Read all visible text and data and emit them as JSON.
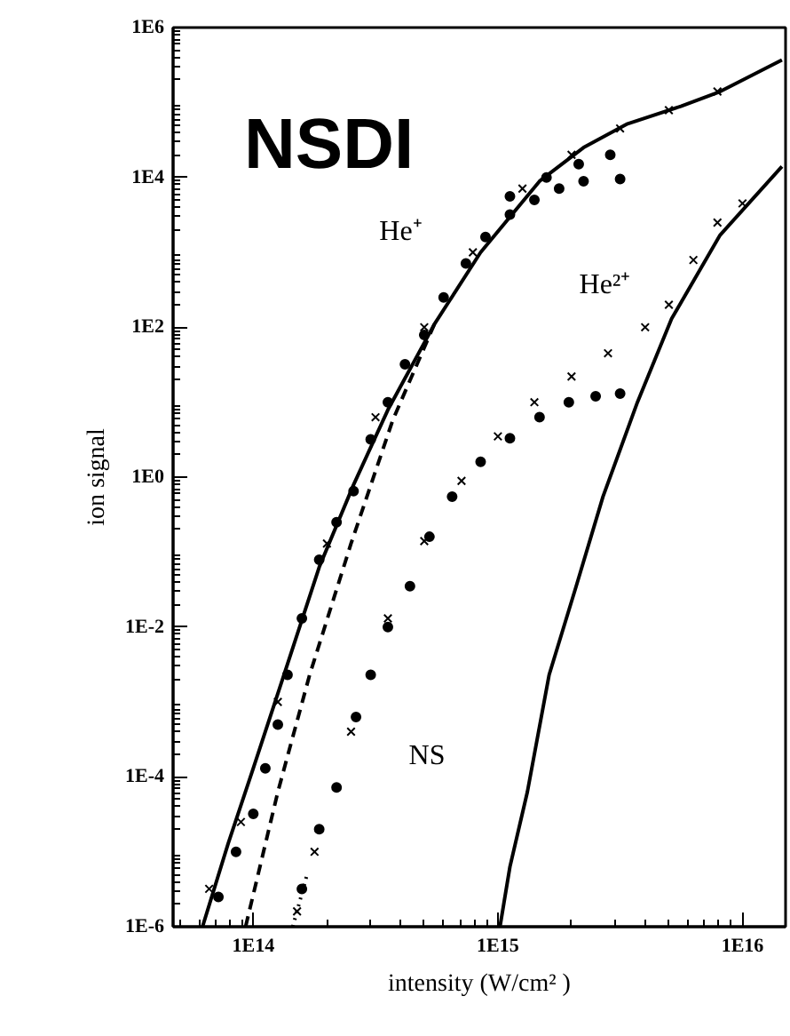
{
  "chart_data": {
    "type": "scatter",
    "title": "NSDI",
    "xlabel": "intensity (W/cm² )",
    "ylabel": "ion signal",
    "log": "xy",
    "grid": false,
    "xlim": [
      47000000000000.0,
      1.5e+16
    ],
    "ylim": [
      1e-06,
      1000000.0
    ],
    "xticks": [
      {
        "value": 100000000000000.0,
        "label": "1E14"
      },
      {
        "value": 1000000000000000.0,
        "label": "1E15"
      },
      {
        "value": 1e+16,
        "label": "1E16"
      }
    ],
    "yticks": [
      {
        "value": 1e-06,
        "label": "1E-6"
      },
      {
        "value": 0.0001,
        "label": "1E-4"
      },
      {
        "value": 0.01,
        "label": "1E-2"
      },
      {
        "value": 1,
        "label": "1E0"
      },
      {
        "value": 100,
        "label": "1E2"
      },
      {
        "value": 10000,
        "label": "1E4"
      },
      {
        "value": 1000000,
        "label": "1E6"
      }
    ],
    "annotations": [
      "He⁺",
      "He²⁺",
      "NS"
    ],
    "series": [
      {
        "marker": "circle",
        "color": "#000000",
        "x": [
          72000000000000.0,
          85000000000000.0,
          100000000000000.0,
          112000000000000.0,
          126000000000000.0,
          138000000000000.0,
          158000000000000.0,
          186000000000000.0,
          219000000000000.0,
          257000000000000.0,
          302000000000000.0,
          355000000000000.0,
          417000000000000.0,
          500000000000000.0,
          600000000000000.0,
          740000000000000.0,
          890000000000000.0,
          1120000000000000.0,
          1410000000000000.0,
          1780000000000000.0,
          2240000000000000.0,
          3160000000000000.0
        ],
        "values": [
          2.5e-06,
          1e-05,
          3.2e-05,
          0.00013,
          0.0005,
          0.0023,
          0.013,
          0.079,
          0.25,
          0.65,
          3.2,
          10,
          32,
          79,
          250,
          710,
          1600,
          3200,
          5000,
          7100,
          8900,
          9500
        ]
      },
      {
        "marker": "circle",
        "color": "#000000",
        "x": [
          1120000000000000.0,
          1580000000000000.0,
          2140000000000000.0,
          2880000000000000.0
        ],
        "values": [
          5600,
          10000,
          15000,
          20000
        ]
      },
      {
        "marker": "cross",
        "color": "#000000",
        "x": [
          66000000000000.0,
          89000000000000.0,
          126000000000000.0,
          200000000000000.0,
          316000000000000.0,
          500000000000000.0,
          790000000000000.0,
          1260000000000000.0,
          2000000000000000.0,
          3160000000000000.0,
          5000000000000000.0,
          7900000000000000.0
        ],
        "values": [
          3.2e-06,
          2.5e-05,
          0.001,
          0.13,
          6.3,
          100,
          1000,
          7100,
          20000,
          45000,
          79000,
          140000
        ]
      },
      {
        "type": "line",
        "line_style": "solid",
        "color": "#000000",
        "x": [
          62000000000000.0,
          79000000000000.0,
          100000000000000.0,
          138000000000000.0,
          186000000000000.0,
          257000000000000.0,
          355000000000000.0,
          550000000000000.0,
          850000000000000.0,
          1480000000000000.0,
          2240000000000000.0,
          3390000000000000.0,
          5600000000000000.0,
          8100000000000000.0,
          1.45e+16
        ],
        "values": [
          1e-06,
          1.3e-05,
          0.00013,
          0.0032,
          0.063,
          0.79,
          7.9,
          110,
          1000,
          8900,
          25000,
          52000,
          89000,
          140000,
          370000
        ]
      },
      {
        "type": "line",
        "line_style": "dashed",
        "color": "#000000",
        "x": [
          93000000000000.0,
          126000000000000.0,
          170000000000000.0,
          251000000000000.0,
          372000000000000.0,
          550000000000000.0
        ],
        "values": [
          1e-06,
          6.3e-05,
          0.0023,
          0.13,
          5.8,
          110
        ]
      },
      {
        "marker": "circle",
        "color": "#000000",
        "x": [
          158000000000000.0,
          186000000000000.0,
          219000000000000.0,
          263000000000000.0,
          302000000000000.0,
          355000000000000.0,
          437000000000000.0,
          525000000000000.0,
          650000000000000.0,
          850000000000000.0,
          1120000000000000.0,
          1480000000000000.0,
          1950000000000000.0,
          2510000000000000.0,
          3160000000000000.0
        ],
        "values": [
          3.2e-06,
          2e-05,
          7.2e-05,
          0.00063,
          0.0023,
          0.01,
          0.035,
          0.16,
          0.55,
          1.6,
          3.3,
          6.3,
          10,
          12,
          13
        ]
      },
      {
        "marker": "cross",
        "color": "#000000",
        "x": [
          151000000000000.0,
          178000000000000.0,
          251000000000000.0,
          355000000000000.0,
          500000000000000.0,
          710000000000000.0,
          1000000000000000.0,
          1410000000000000.0,
          2000000000000000.0,
          2820000000000000.0,
          4000000000000000.0,
          5000000000000000.0,
          6300000000000000.0,
          7900000000000000.0,
          1e+16
        ],
        "values": [
          1.6e-06,
          1e-05,
          0.0004,
          0.013,
          0.14,
          0.89,
          3.5,
          10,
          22,
          45,
          100,
          200,
          790,
          2500,
          4500
        ]
      },
      {
        "type": "line",
        "line_style": "dotted",
        "color": "#000000",
        "x": [
          145000000000000.0,
          166000000000000.0
        ],
        "values": [
          1e-06,
          5e-06
        ]
      },
      {
        "type": "line",
        "line_style": "solid",
        "color": "#000000",
        "x": [
          1020000000000000.0,
          1120000000000000.0,
          1320000000000000.0,
          1620000000000000.0,
          2090000000000000.0,
          2690000000000000.0,
          3720000000000000.0,
          5130000000000000.0,
          8100000000000000.0,
          1.45e+16
        ],
        "values": [
          1e-06,
          6.3e-06,
          6.3e-05,
          0.0023,
          0.035,
          0.55,
          10,
          130,
          1700,
          14000
        ]
      }
    ]
  }
}
